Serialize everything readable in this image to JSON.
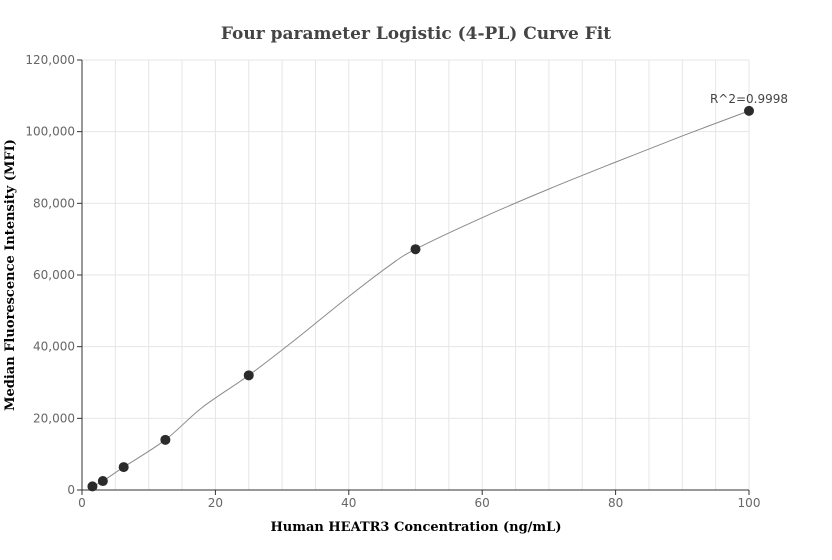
{
  "chart_data": {
    "type": "scatter",
    "title": "Four parameter Logistic (4-PL) Curve Fit",
    "xlabel": "Human HEATR3 Concentration (ng/mL)",
    "ylabel": "Median Fluorescence Intensity (MFI)",
    "xlim": [
      0,
      100
    ],
    "ylim": [
      0,
      120000
    ],
    "x_ticks": [
      0,
      20,
      40,
      60,
      80,
      100
    ],
    "y_ticks": [
      0,
      20000,
      40000,
      60000,
      80000,
      100000,
      120000
    ],
    "x_tick_labels": [
      "0",
      "20",
      "40",
      "60",
      "80",
      "100"
    ],
    "y_tick_labels": [
      "0",
      "20,000",
      "40,000",
      "60,000",
      "80,000",
      "100,000",
      "120,000"
    ],
    "grid": true,
    "points": [
      {
        "x": 1.5625,
        "y": 1000
      },
      {
        "x": 3.125,
        "y": 2500
      },
      {
        "x": 6.25,
        "y": 6400
      },
      {
        "x": 12.5,
        "y": 14000
      },
      {
        "x": 25,
        "y": 32000
      },
      {
        "x": 50,
        "y": 67200
      },
      {
        "x": 100,
        "y": 105800
      }
    ],
    "fit_curve": [
      [
        1.5625,
        1000
      ],
      [
        3.125,
        2500
      ],
      [
        6.25,
        6400
      ],
      [
        12.5,
        14000
      ],
      [
        18,
        23000
      ],
      [
        25,
        32000
      ],
      [
        32,
        42000
      ],
      [
        40,
        54000
      ],
      [
        46,
        62500
      ],
      [
        50,
        67200
      ],
      [
        60,
        76000
      ],
      [
        70,
        84000
      ],
      [
        80,
        91500
      ],
      [
        90,
        98800
      ],
      [
        100,
        105800
      ]
    ],
    "annotation": "R^2=0.9998",
    "colors": {
      "point": "#2b2b2b",
      "curve": "#8a8a8a",
      "grid": "#e6e6e6",
      "axis": "#333333"
    }
  }
}
